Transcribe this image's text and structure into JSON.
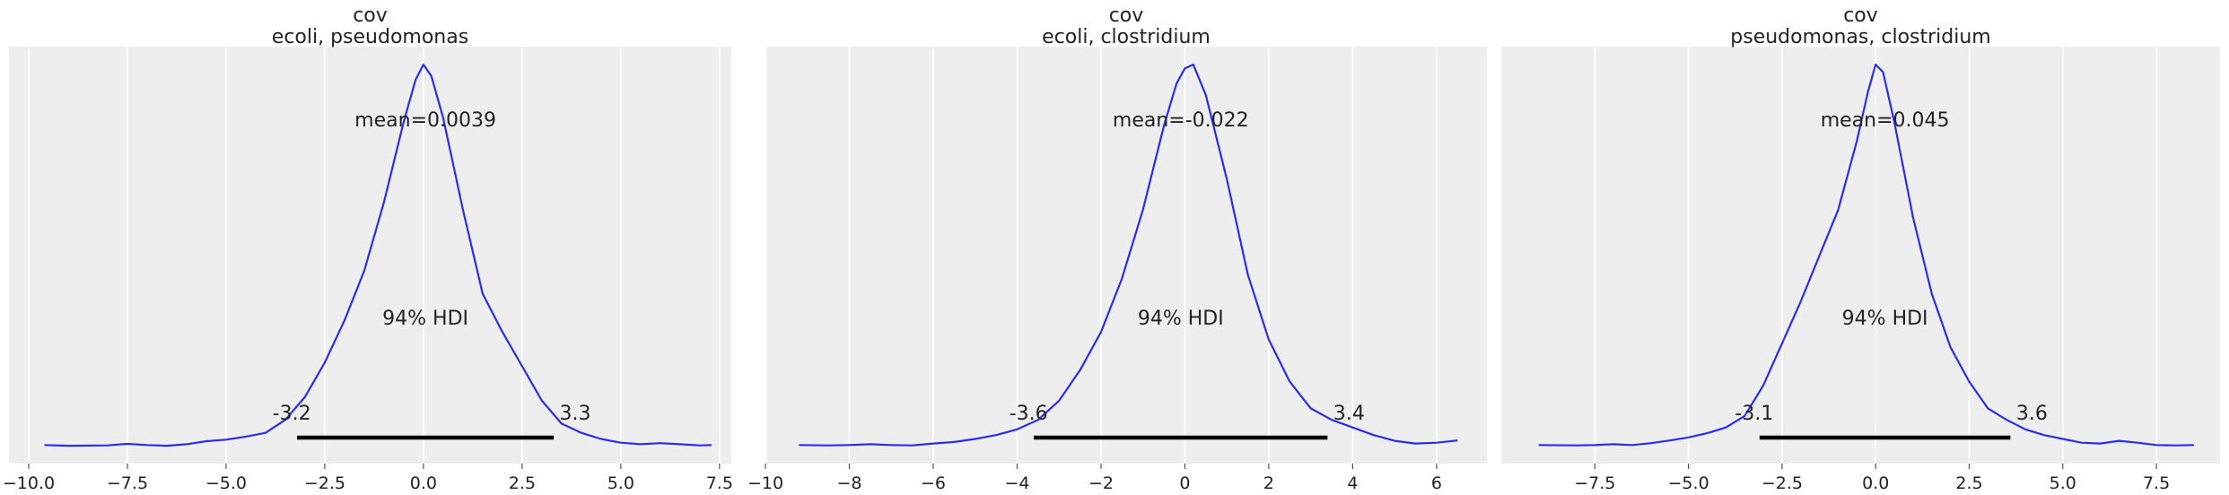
{
  "chart_data": [
    {
      "type": "line",
      "title": "cov\necoli, pseudomonas",
      "xlim": [
        -10.5,
        7.8
      ],
      "ylim": [
        0,
        1
      ],
      "xticks": [
        -10.0,
        -7.5,
        -5.0,
        -2.5,
        0.0,
        2.5,
        5.0,
        7.5
      ],
      "xtick_labels": [
        "−10.0",
        "−7.5",
        "−5.0",
        "−2.5",
        "0.0",
        "2.5",
        "5.0",
        "7.5"
      ],
      "grid": true,
      "density": {
        "x": [
          -9.6,
          -9.0,
          -8.0,
          -7.5,
          -7.0,
          -6.5,
          -6.0,
          -5.5,
          -5.0,
          -4.5,
          -4.0,
          -3.5,
          -3.0,
          -2.5,
          -2.0,
          -1.5,
          -1.0,
          -0.5,
          -0.2,
          0.0,
          0.2,
          0.5,
          1.0,
          1.5,
          2.0,
          2.5,
          3.0,
          3.5,
          4.0,
          4.5,
          5.0,
          5.5,
          6.0,
          6.5,
          7.0,
          7.3
        ],
        "y": [
          0.004,
          0.002,
          0.003,
          0.007,
          0.004,
          0.002,
          0.006,
          0.014,
          0.018,
          0.026,
          0.036,
          0.07,
          0.13,
          0.22,
          0.33,
          0.46,
          0.64,
          0.85,
          0.96,
          1.0,
          0.97,
          0.86,
          0.62,
          0.4,
          0.3,
          0.21,
          0.12,
          0.06,
          0.036,
          0.02,
          0.01,
          0.006,
          0.009,
          0.006,
          0.003,
          0.004
        ]
      },
      "mean_label": "mean=0.0039",
      "hdi_label": "94% HDI",
      "hdi": {
        "low": -3.2,
        "high": 3.3,
        "low_label": "-3.2",
        "high_label": "3.3"
      },
      "color": "#2a2eec"
    },
    {
      "type": "line",
      "title": "cov\necoli, clostridium",
      "xlim": [
        -10.0,
        7.2
      ],
      "ylim": [
        0,
        1
      ],
      "xticks": [
        -10,
        -8,
        -6,
        -4,
        -2,
        0,
        2,
        4,
        6
      ],
      "xtick_labels": [
        "−10",
        "−8",
        "−6",
        "−4",
        "−2",
        "0",
        "2",
        "4",
        "6"
      ],
      "grid": true,
      "density": {
        "x": [
          -9.2,
          -8.5,
          -8.0,
          -7.5,
          -7.0,
          -6.5,
          -6.0,
          -5.5,
          -5.0,
          -4.5,
          -4.0,
          -3.5,
          -3.0,
          -2.5,
          -2.0,
          -1.5,
          -1.0,
          -0.5,
          -0.2,
          0.0,
          0.2,
          0.5,
          1.0,
          1.5,
          2.0,
          2.5,
          3.0,
          3.5,
          4.0,
          4.5,
          5.0,
          5.5,
          6.0,
          6.5
        ],
        "y": [
          0.004,
          0.003,
          0.004,
          0.006,
          0.004,
          0.003,
          0.008,
          0.012,
          0.02,
          0.03,
          0.045,
          0.07,
          0.12,
          0.2,
          0.3,
          0.44,
          0.62,
          0.84,
          0.95,
          0.99,
          1.0,
          0.92,
          0.7,
          0.45,
          0.28,
          0.17,
          0.1,
          0.07,
          0.05,
          0.03,
          0.015,
          0.008,
          0.01,
          0.016
        ]
      },
      "mean_label": "mean=-0.022",
      "hdi_label": "94% HDI",
      "hdi": {
        "low": -3.6,
        "high": 3.4,
        "low_label": "-3.6",
        "high_label": "3.4"
      },
      "color": "#2a2eec"
    },
    {
      "type": "line",
      "title": "cov\npseudomonas, clostridium",
      "xlim": [
        -10.0,
        9.2
      ],
      "ylim": [
        0,
        1
      ],
      "xticks": [
        -7.5,
        -5.0,
        -2.5,
        0.0,
        2.5,
        5.0,
        7.5
      ],
      "xtick_labels": [
        "−7.5",
        "−5.0",
        "−2.5",
        "0.0",
        "2.5",
        "5.0",
        "7.5"
      ],
      "grid": true,
      "density": {
        "x": [
          -9.0,
          -8.0,
          -7.5,
          -7.0,
          -6.5,
          -6.0,
          -5.5,
          -5.0,
          -4.5,
          -4.0,
          -3.5,
          -3.0,
          -2.5,
          -2.0,
          -1.5,
          -1.0,
          -0.5,
          -0.2,
          0.0,
          0.2,
          0.5,
          1.0,
          1.5,
          2.0,
          2.5,
          3.0,
          3.5,
          4.0,
          4.5,
          5.0,
          5.5,
          6.0,
          6.5,
          7.0,
          7.5,
          8.0,
          8.5
        ],
        "y": [
          0.004,
          0.003,
          0.004,
          0.006,
          0.004,
          0.009,
          0.016,
          0.024,
          0.035,
          0.05,
          0.08,
          0.16,
          0.27,
          0.38,
          0.5,
          0.62,
          0.8,
          0.93,
          1.0,
          0.98,
          0.85,
          0.6,
          0.4,
          0.26,
          0.17,
          0.1,
          0.07,
          0.045,
          0.03,
          0.02,
          0.01,
          0.008,
          0.015,
          0.01,
          0.004,
          0.003,
          0.004
        ]
      },
      "mean_label": "mean=0.045",
      "hdi_label": "94% HDI",
      "hdi": {
        "low": -3.1,
        "high": 3.6,
        "low_label": "-3.1",
        "high_label": "3.6"
      },
      "color": "#2a2eec"
    }
  ]
}
